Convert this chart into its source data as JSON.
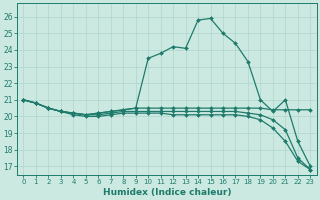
{
  "xlabel": "Humidex (Indice chaleur)",
  "bg_color": "#cce9e1",
  "line_color": "#1e7b6b",
  "grid_color": "#aed4cc",
  "xlim": [
    -0.5,
    23.5
  ],
  "ylim": [
    16.5,
    26.8
  ],
  "yticks": [
    17,
    18,
    19,
    20,
    21,
    22,
    23,
    24,
    25,
    26
  ],
  "xticks": [
    0,
    1,
    2,
    3,
    4,
    5,
    6,
    7,
    8,
    9,
    10,
    11,
    12,
    13,
    14,
    15,
    16,
    17,
    18,
    19,
    20,
    21,
    22,
    23
  ],
  "x": [
    0,
    1,
    2,
    3,
    4,
    5,
    6,
    7,
    8,
    9,
    10,
    11,
    12,
    13,
    14,
    15,
    16,
    17,
    18,
    19,
    20,
    21,
    22,
    23
  ],
  "y_peak": [
    21.0,
    20.8,
    20.5,
    20.3,
    20.2,
    20.1,
    20.2,
    20.3,
    20.4,
    20.5,
    23.5,
    23.8,
    24.2,
    24.1,
    25.8,
    25.9,
    25.0,
    24.4,
    23.3,
    21.0,
    20.3,
    21.0,
    18.5,
    17.0
  ],
  "y_flat": [
    21.0,
    20.8,
    20.5,
    20.3,
    20.2,
    20.1,
    20.2,
    20.3,
    20.4,
    20.5,
    20.5,
    20.5,
    20.5,
    20.5,
    20.5,
    20.5,
    20.5,
    20.5,
    20.5,
    20.5,
    20.4,
    20.4,
    20.4,
    20.4
  ],
  "y_decline1": [
    21.0,
    20.8,
    20.5,
    20.3,
    20.2,
    20.1,
    20.1,
    20.2,
    20.3,
    20.3,
    20.3,
    20.3,
    20.3,
    20.3,
    20.3,
    20.3,
    20.3,
    20.3,
    20.2,
    20.1,
    19.8,
    19.2,
    17.5,
    16.8
  ],
  "y_decline2": [
    21.0,
    20.8,
    20.5,
    20.3,
    20.1,
    20.0,
    20.0,
    20.1,
    20.2,
    20.2,
    20.2,
    20.2,
    20.1,
    20.1,
    20.1,
    20.1,
    20.1,
    20.1,
    20.0,
    19.8,
    19.3,
    18.5,
    17.3,
    16.8
  ]
}
